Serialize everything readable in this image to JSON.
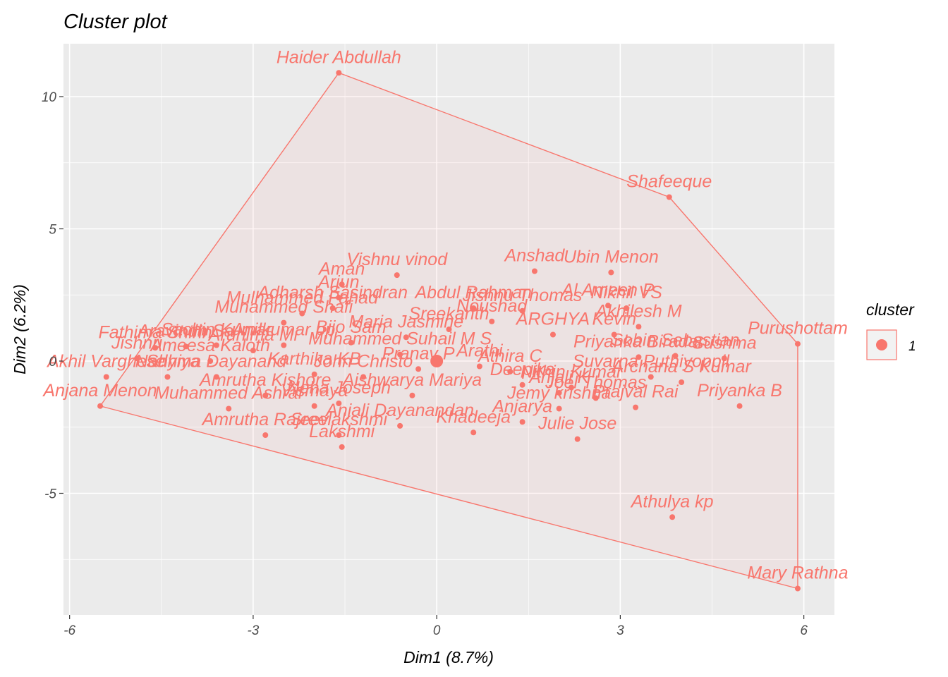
{
  "chart_data": {
    "type": "scatter",
    "title": "Cluster plot",
    "xlabel": "Dim1 (8.7%)",
    "ylabel": "Dim2 (6.2%)",
    "xlim": [
      -6.1,
      6.5
    ],
    "ylim": [
      -9.6,
      12.0
    ],
    "x_ticks": [
      -6,
      -3,
      0,
      3,
      6
    ],
    "y_ticks": [
      -5,
      0,
      5,
      10
    ],
    "x_tick_labels": [
      "-6",
      "-3",
      "0",
      "3",
      "6"
    ],
    "y_tick_labels": [
      "-5",
      "0",
      "5",
      "10"
    ],
    "grid": true,
    "legend": {
      "title": "cluster",
      "entries": [
        "1"
      ],
      "placement": "right"
    },
    "color": "#F8766D",
    "centroid": {
      "x": 0.0,
      "y": 0.0
    },
    "hull": [
      {
        "x": -1.6,
        "y": 10.9
      },
      {
        "x": 3.8,
        "y": 6.2
      },
      {
        "x": 5.9,
        "y": 0.65
      },
      {
        "x": 5.9,
        "y": -8.6
      },
      {
        "x": -5.5,
        "y": -1.7
      }
    ],
    "points": [
      {
        "label": "Haider Abdullah",
        "x": -1.6,
        "y": 10.9
      },
      {
        "label": "Shafeeque",
        "x": 3.8,
        "y": 6.2
      },
      {
        "label": "Purushottam",
        "x": 5.9,
        "y": 0.65
      },
      {
        "label": "Mary Rathna",
        "x": 5.9,
        "y": -8.6
      },
      {
        "label": "Athulya kp",
        "x": 3.85,
        "y": -5.9
      },
      {
        "label": "Priyanka B",
        "x": 4.95,
        "y": -1.7
      },
      {
        "label": "Vishnu vinod",
        "x": -0.65,
        "y": 3.25
      },
      {
        "label": "Anshad",
        "x": 1.6,
        "y": 3.4
      },
      {
        "label": "Ubin Menon",
        "x": 2.85,
        "y": 3.35
      },
      {
        "label": "Aman",
        "x": -1.55,
        "y": 2.9
      },
      {
        "label": "Al Ameen P",
        "x": 2.8,
        "y": 2.1
      },
      {
        "label": "Arjun",
        "x": -1.6,
        "y": 2.4
      },
      {
        "label": "Adharsh Sasindran",
        "x": -1.7,
        "y": 2.0
      },
      {
        "label": "Mulhammed Fahad",
        "x": -2.2,
        "y": 1.8
      },
      {
        "label": "Jishnu Thomas",
        "x": 1.4,
        "y": 1.9
      },
      {
        "label": "Nikhil VS",
        "x": 3.1,
        "y": 2.0
      },
      {
        "label": "Abdul Rahman",
        "x": 0.6,
        "y": 2.0
      },
      {
        "label": "Akhilesh M",
        "x": 3.3,
        "y": 1.3
      },
      {
        "label": "Sreekanth",
        "x": 0.2,
        "y": 1.2
      },
      {
        "label": "Noushad",
        "x": 0.9,
        "y": 1.5
      },
      {
        "label": "Muhammed Shafi",
        "x": -2.5,
        "y": 1.45
      },
      {
        "label": "Sachin Kumar",
        "x": -3.6,
        "y": 0.6
      },
      {
        "label": "Arunima Mi",
        "x": -3.0,
        "y": 0.4
      },
      {
        "label": "Aravindh Sa",
        "x": -4.1,
        "y": 0.55
      },
      {
        "label": "Fathima Shirin",
        "x": -4.6,
        "y": 0.5
      },
      {
        "label": "Anilkumar pp",
        "x": -2.5,
        "y": 0.6
      },
      {
        "label": "Bijo Sam",
        "x": -1.4,
        "y": 0.7
      },
      {
        "label": "Maria Jasmine",
        "x": -0.5,
        "y": 0.9
      },
      {
        "label": "ARGHYA",
        "x": 1.9,
        "y": 1.0
      },
      {
        "label": "Kevin",
        "x": 2.9,
        "y": 1.0
      },
      {
        "label": "Priyanka Biradar",
        "x": 3.3,
        "y": 0.15
      },
      {
        "label": "Sobin Sebastian",
        "x": 3.9,
        "y": 0.2
      },
      {
        "label": "Sushma",
        "x": 4.7,
        "y": 0.1
      },
      {
        "label": "Muhammed Suhail M S",
        "x": -0.6,
        "y": 0.25
      },
      {
        "label": "Suvarna Puthiyoppil",
        "x": 3.5,
        "y": -0.6
      },
      {
        "label": "Archana S Kumar",
        "x": 4.0,
        "y": -0.8
      },
      {
        "label": "Pranav P",
        "x": -0.3,
        "y": -0.3
      },
      {
        "label": "Athira C",
        "x": 1.2,
        "y": -0.4
      },
      {
        "label": "Deepika",
        "x": 1.4,
        "y": -0.9
      },
      {
        "label": "Nithin Kumar",
        "x": 2.2,
        "y": -1.0
      },
      {
        "label": "Prajval Rai",
        "x": 3.25,
        "y": -1.75
      },
      {
        "label": "Anjali K",
        "x": 2.0,
        "y": -1.2
      },
      {
        "label": "Joel Thomas",
        "x": 2.6,
        "y": -1.4
      },
      {
        "label": "Jishnu",
        "x": -4.9,
        "y": 0.1
      },
      {
        "label": "Akhil Varghese",
        "x": -5.4,
        "y": -0.6
      },
      {
        "label": "Nadhiya",
        "x": -4.4,
        "y": -0.6
      },
      {
        "label": "Ameesa Kaloth",
        "x": -3.7,
        "y": 0.0
      },
      {
        "label": "Shyma Dayanand",
        "x": -3.6,
        "y": -0.6
      },
      {
        "label": "John Christo",
        "x": -1.2,
        "y": -0.6
      },
      {
        "label": "Karthika KB",
        "x": -2.0,
        "y": -0.5
      },
      {
        "label": "Amrutha Kishore",
        "x": -2.8,
        "y": -1.3
      },
      {
        "label": "Muhammed Ashraf",
        "x": -3.4,
        "y": -1.8
      },
      {
        "label": "Neha Joseph",
        "x": -1.6,
        "y": -1.6
      },
      {
        "label": "Aishwarya Mariya",
        "x": -0.4,
        "y": -1.3
      },
      {
        "label": "Vismaya",
        "x": -2.0,
        "y": -1.7
      },
      {
        "label": "Amrutha Rajeev",
        "x": -2.8,
        "y": -2.8
      },
      {
        "label": "Sreelakshmi",
        "x": -1.6,
        "y": -2.8
      },
      {
        "label": "Lakshmi",
        "x": -1.55,
        "y": -3.25
      },
      {
        "label": "Anjali Dayanandan",
        "x": -0.6,
        "y": -2.45
      },
      {
        "label": "Khadeeja",
        "x": 0.6,
        "y": -2.7
      },
      {
        "label": "Anjarya",
        "x": 1.4,
        "y": -2.3
      },
      {
        "label": "Jemy krishna",
        "x": 2.0,
        "y": -1.8
      },
      {
        "label": "Julie Jose",
        "x": 2.3,
        "y": -2.95
      },
      {
        "label": "Arathi",
        "x": 0.7,
        "y": -0.2
      },
      {
        "label": "Anjana Menon",
        "x": -5.5,
        "y": -1.7
      }
    ]
  }
}
